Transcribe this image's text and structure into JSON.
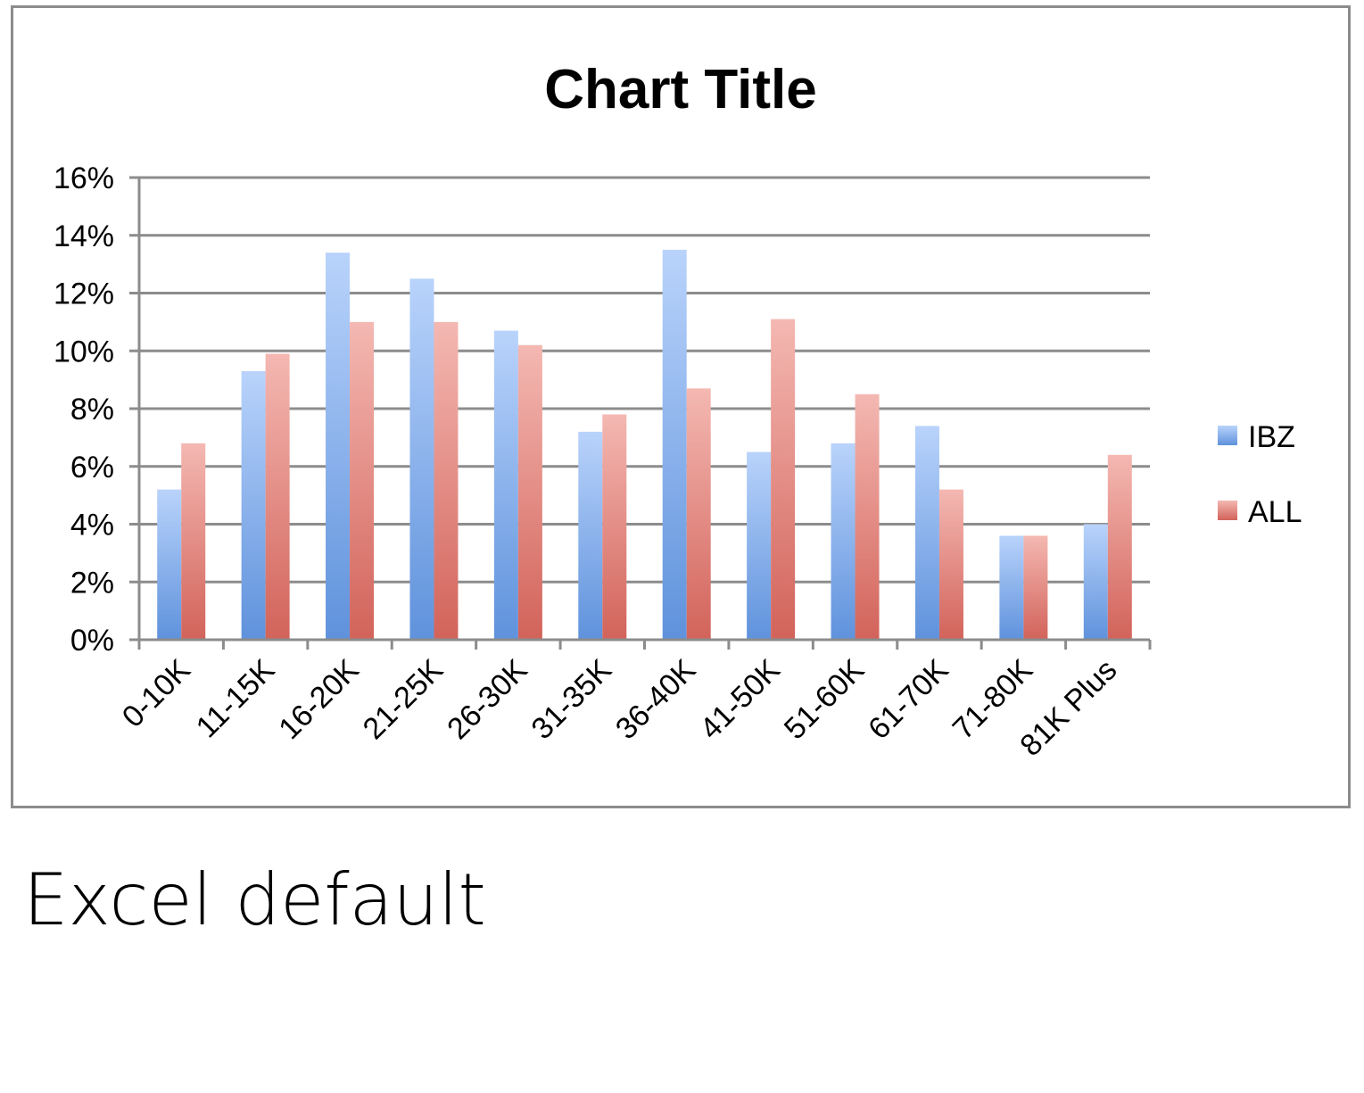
{
  "caption": "Excel default",
  "chart_data": {
    "type": "bar",
    "title": "Chart Title",
    "xlabel": "",
    "ylabel": "",
    "categories": [
      "0-10K",
      "11-15K",
      "16-20K",
      "21-25K",
      "26-30K",
      "31-35K",
      "36-40K",
      "41-50K",
      "51-60K",
      "61-70K",
      "71-80K",
      "81K Plus"
    ],
    "series": [
      {
        "name": "IBZ",
        "color": "#6f9fe0",
        "values": [
          0.052,
          0.093,
          0.134,
          0.125,
          0.107,
          0.072,
          0.135,
          0.065,
          0.068,
          0.074,
          0.036,
          0.04
        ]
      },
      {
        "name": "ALL",
        "color": "#de7a72",
        "values": [
          0.068,
          0.099,
          0.11,
          0.11,
          0.102,
          0.078,
          0.087,
          0.111,
          0.085,
          0.052,
          0.036,
          0.064
        ]
      }
    ],
    "ylim": [
      0,
      0.16
    ],
    "ytick_labels": [
      "0%",
      "2%",
      "4%",
      "6%",
      "8%",
      "10%",
      "12%",
      "14%",
      "16%"
    ],
    "grid": true,
    "legend_position": "right"
  }
}
